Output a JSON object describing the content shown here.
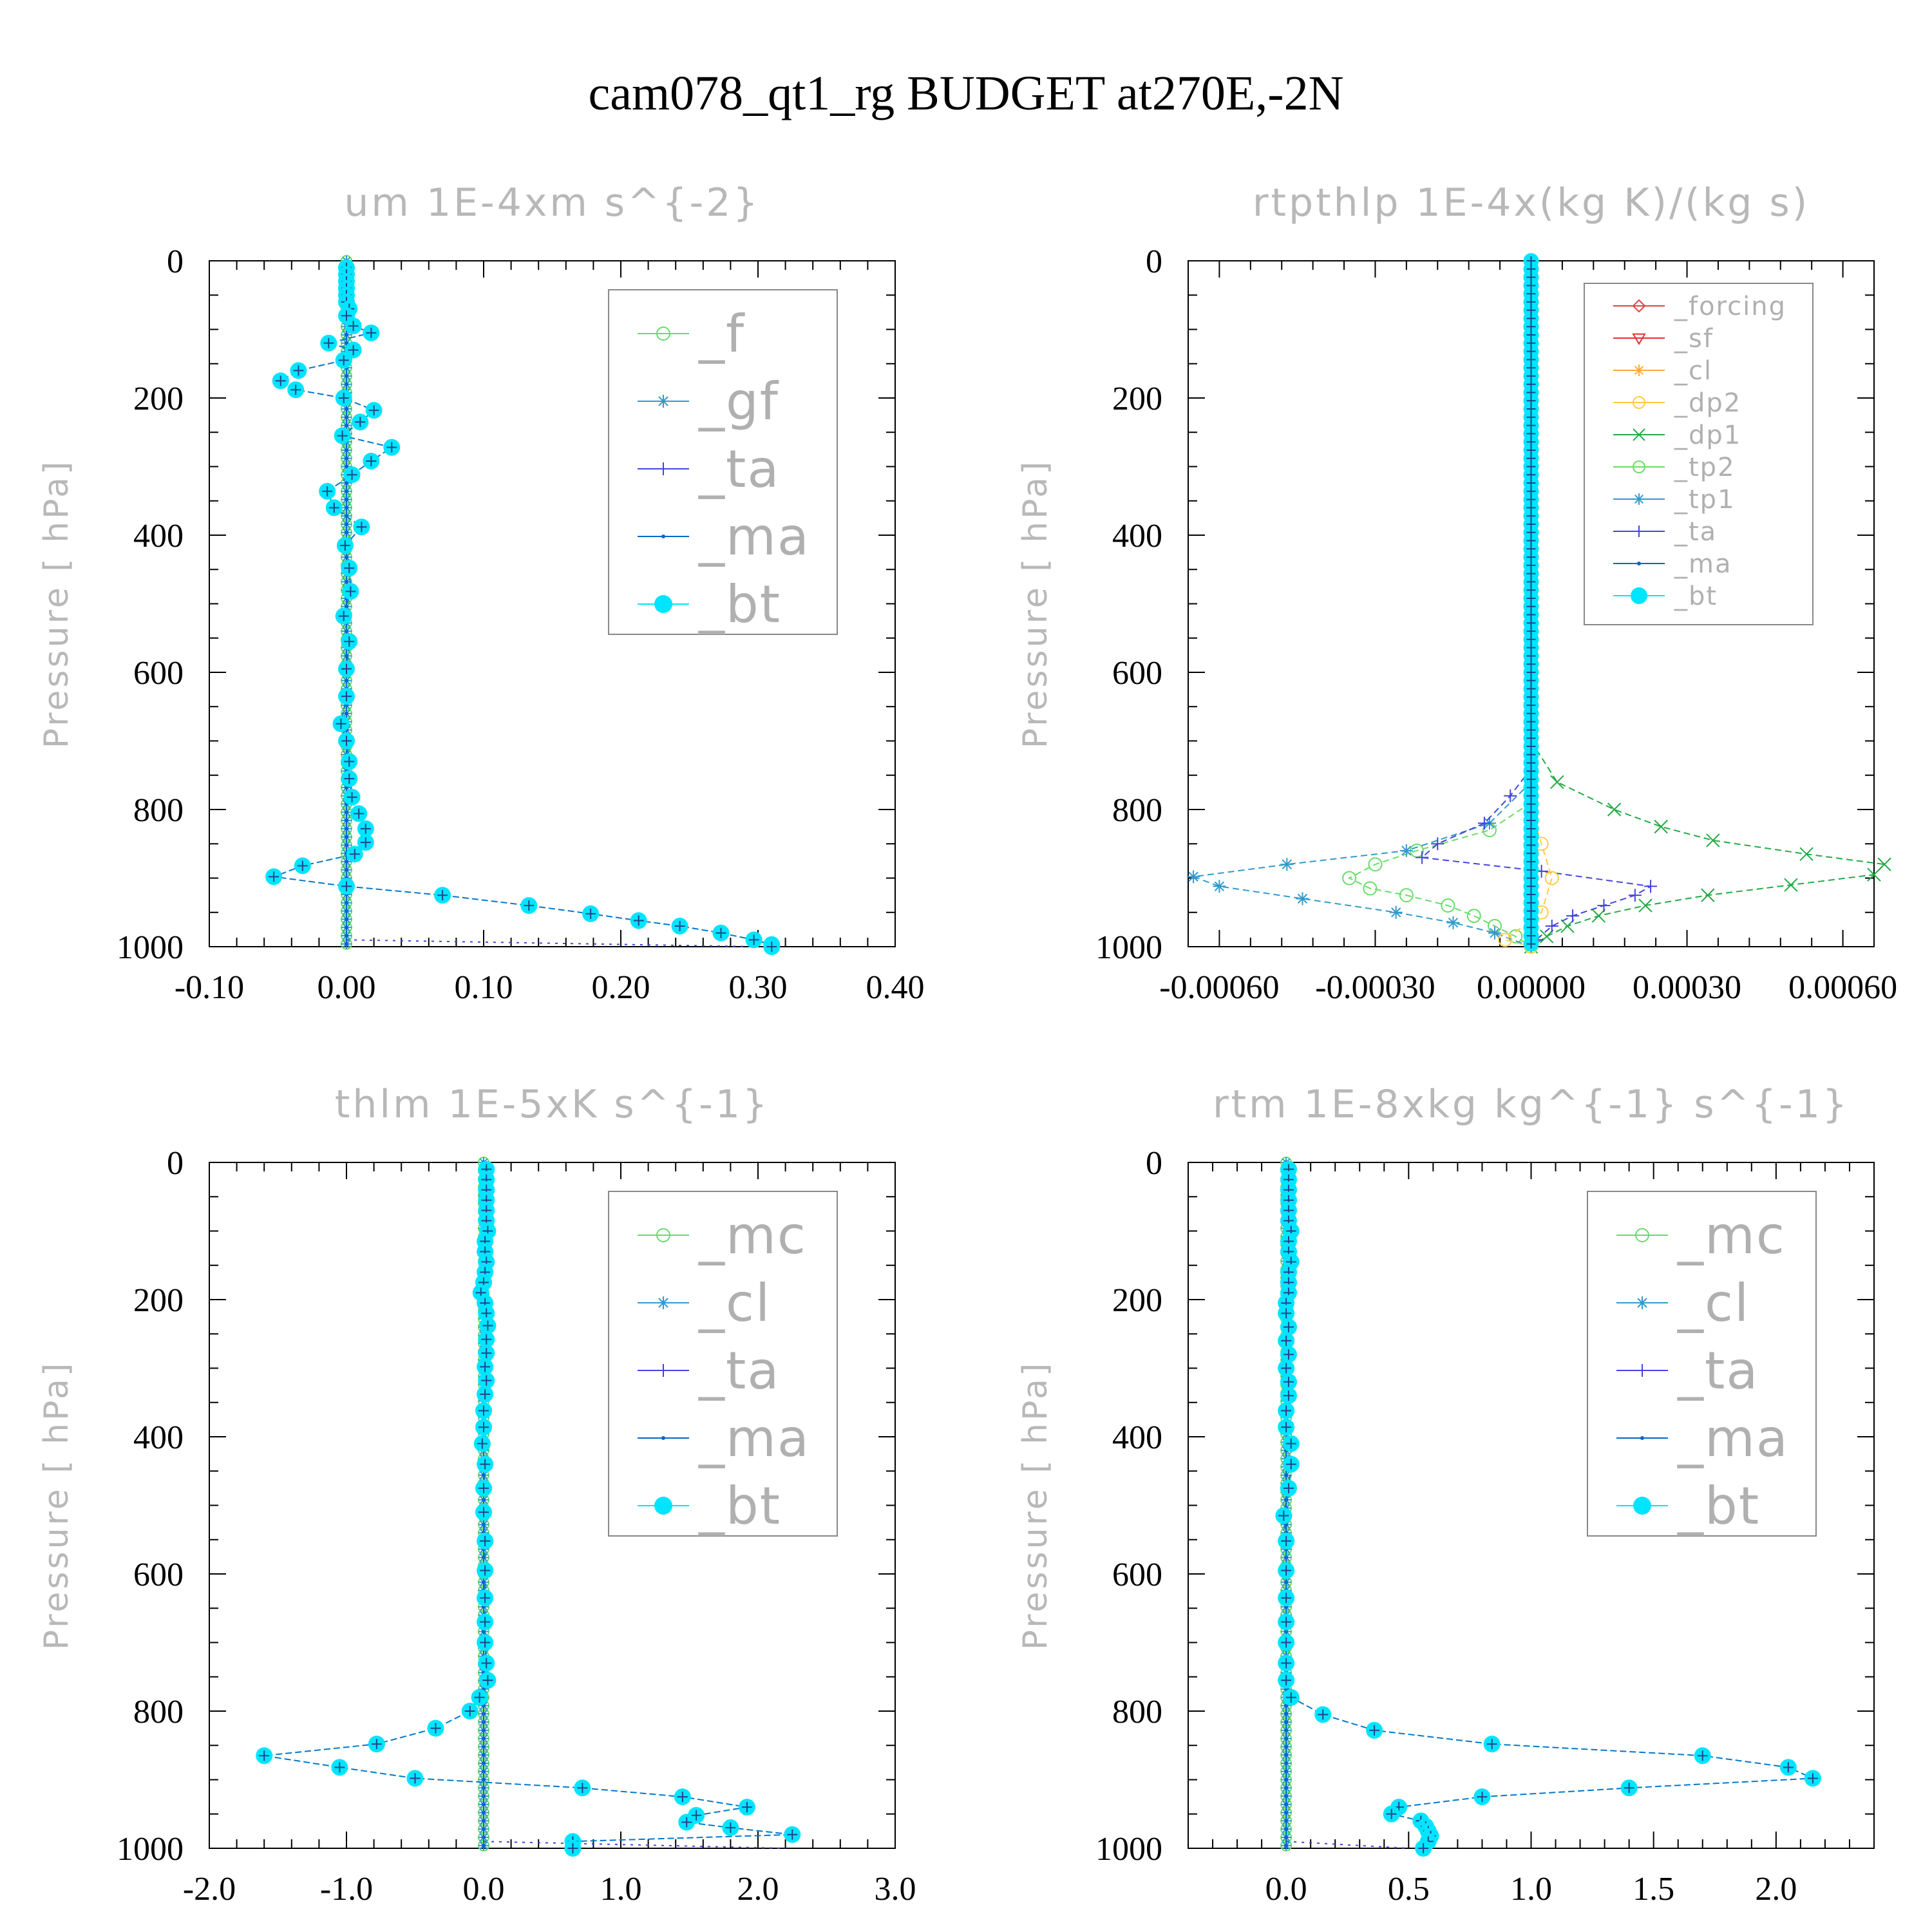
{
  "figure_title": "cam078_qt1_rg  BUDGET at270E,-2N",
  "colors": {
    "_f": "#66dd66",
    "_gf": "#3399cc",
    "_ta": "#4444dd",
    "_ma": "#0066cc",
    "_bt": "#00e5ff",
    "_mc": "#66dd66",
    "_cl": "#3399cc",
    "_forcing": "#dd4444",
    "_sf": "#dd3333",
    "_cl_rt": "#ffaa33",
    "_dp2": "#ffcc44",
    "_dp1": "#22aa44",
    "_tp2": "#66dd66",
    "_tp1": "#3399cc"
  },
  "chart_data": [
    {
      "id": "um",
      "type": "line",
      "title": "um  1E-4xm s^{-2}",
      "ylabel": "Pressure [ hPa]",
      "xlim": [
        -0.1,
        0.4
      ],
      "ylim": [
        1000,
        0
      ],
      "xticks": [
        "-0.10",
        "0.00",
        "0.10",
        "0.20",
        "0.30",
        "0.40"
      ],
      "xtick_values": [
        -0.1,
        0.0,
        0.1,
        0.2,
        0.3,
        0.4
      ],
      "yticks": [
        "0",
        "200",
        "400",
        "600",
        "800",
        "1000"
      ],
      "ytick_values": [
        0,
        200,
        400,
        600,
        800,
        1000
      ],
      "legend": [
        "_f",
        "_gf",
        "_ta",
        "_ma",
        "_bt"
      ],
      "legend_placement": "top-right",
      "pressure": [
        10,
        20,
        30,
        40,
        50,
        60,
        70,
        80,
        95,
        105,
        120,
        130,
        145,
        160,
        175,
        188,
        200,
        218,
        235,
        255,
        272,
        292,
        312,
        336,
        360,
        388,
        415,
        448,
        482,
        518,
        555,
        595,
        635,
        675,
        700,
        730,
        755,
        782,
        806,
        828,
        848,
        865,
        882,
        898,
        912,
        925,
        940,
        952,
        962,
        970,
        980,
        990,
        997,
        1000
      ],
      "bt_values": [
        0.0,
        0.0,
        0.0,
        0.0,
        0.0,
        0.0,
        0.002,
        0.0,
        0.005,
        0.018,
        -0.013,
        0.005,
        -0.002,
        -0.035,
        -0.048,
        -0.037,
        -0.002,
        0.02,
        0.01,
        -0.003,
        0.033,
        0.018,
        0.004,
        -0.014,
        -0.009,
        0.011,
        -0.001,
        0.002,
        0.003,
        -0.002,
        0.002,
        0.0,
        0.0,
        -0.004,
        0.0,
        0.002,
        0.002,
        0.004,
        0.009,
        0.014,
        0.014,
        0.006,
        -0.032,
        -0.053,
        0.0,
        0.07,
        0.133,
        0.178,
        0.213,
        0.243,
        0.273,
        0.297,
        0.31,
        0.31
      ],
      "ta_profile": {
        "pressure": [
          990,
          1000
        ],
        "values": [
          0.0,
          0.3
        ]
      },
      "series_near_zero": [
        "_f",
        "_gf",
        "_ma"
      ]
    },
    {
      "id": "rtpthlp",
      "type": "line",
      "title": "rtpthlp  1E-4x(kg K)/(kg s)",
      "ylabel": "Pressure [ hPa]",
      "xlim": [
        -0.00066,
        0.00066
      ],
      "ylim": [
        1000,
        0
      ],
      "xticks": [
        "-0.00060",
        "-0.00030",
        "0.00000",
        "0.00030",
        "0.00060"
      ],
      "xtick_values": [
        -0.0006,
        -0.0003,
        0.0,
        0.0003,
        0.0006
      ],
      "yticks": [
        "0",
        "200",
        "400",
        "600",
        "800",
        "1000"
      ],
      "ytick_values": [
        0,
        200,
        400,
        600,
        800,
        1000
      ],
      "legend": [
        "_forcing",
        "_sf",
        "_cl",
        "_dp2",
        "_dp1",
        "_tp2",
        "_tp1",
        "_ta",
        "_ma",
        "_bt"
      ],
      "legend_placement": "top-right",
      "series": [
        {
          "name": "_dp1",
          "pressure": [
            700,
            760,
            800,
            825,
            845,
            865,
            880,
            895,
            910,
            925,
            940,
            955,
            970,
            985,
            1000
          ],
          "values": [
            0.0,
            5e-05,
            0.00016,
            0.00025,
            0.00035,
            0.00053,
            0.00068,
            0.00066,
            0.0005,
            0.00034,
            0.00022,
            0.00013,
            7e-05,
            3e-05,
            0.0
          ]
        },
        {
          "name": "_tp2",
          "pressure": [
            790,
            830,
            860,
            880,
            900,
            915,
            925,
            940,
            955,
            970,
            985,
            1000
          ],
          "values": [
            0.0,
            -8e-05,
            -0.00022,
            -0.0003,
            -0.00035,
            -0.00031,
            -0.00024,
            -0.00016,
            -0.00011,
            -7e-05,
            -3e-05,
            0.0
          ]
        },
        {
          "name": "_tp1",
          "pressure": [
            760,
            820,
            860,
            880,
            898,
            912,
            930,
            950,
            965,
            980,
            1000
          ],
          "values": [
            0.0,
            -8e-05,
            -0.00024,
            -0.00047,
            -0.00065,
            -0.0006,
            -0.00044,
            -0.00026,
            -0.00015,
            -7e-05,
            0.0
          ]
        },
        {
          "name": "_ta",
          "pressure": [
            740,
            780,
            820,
            850,
            870,
            890,
            912,
            925,
            940,
            955,
            970,
            990,
            1000
          ],
          "values": [
            0.0,
            -4e-05,
            -9e-05,
            -0.00018,
            -0.00021,
            2e-05,
            0.00023,
            0.0002,
            0.00014,
            8e-05,
            4e-05,
            1e-05,
            0.0
          ]
        },
        {
          "name": "_dp2",
          "pressure": [
            800,
            850,
            900,
            950,
            990,
            1000
          ],
          "values": [
            0.0,
            2e-05,
            4e-05,
            2e-05,
            -5e-05,
            0.0
          ]
        }
      ],
      "series_near_zero": [
        "_forcing",
        "_sf",
        "_cl",
        "_ma",
        "_bt"
      ]
    },
    {
      "id": "thlm",
      "type": "line",
      "title": "thlm  1E-5xK s^{-1}",
      "ylabel": "Pressure [ hPa]",
      "xlim": [
        -2.0,
        3.0
      ],
      "ylim": [
        1000,
        0
      ],
      "xticks": [
        "-2.0",
        "-1.0",
        "0.0",
        "1.0",
        "2.0",
        "3.0"
      ],
      "xtick_values": [
        -2.0,
        -1.0,
        0.0,
        1.0,
        2.0,
        3.0
      ],
      "yticks": [
        "0",
        "200",
        "400",
        "600",
        "800",
        "1000"
      ],
      "ytick_values": [
        0,
        200,
        400,
        600,
        800,
        1000
      ],
      "legend": [
        "_mc",
        "_cl",
        "_ta",
        "_ma",
        "_bt"
      ],
      "legend_placement": "top-right",
      "pressure": [
        10,
        25,
        40,
        55,
        70,
        85,
        100,
        115,
        130,
        145,
        160,
        175,
        190,
        205,
        220,
        238,
        258,
        278,
        298,
        318,
        338,
        362,
        386,
        410,
        440,
        475,
        510,
        552,
        595,
        635,
        670,
        700,
        730,
        755,
        780,
        800,
        825,
        848,
        865,
        882,
        898,
        912,
        925,
        940,
        952,
        962,
        970,
        980,
        990,
        1000
      ],
      "bt_values": [
        0.02,
        0.02,
        0.02,
        0.02,
        0.02,
        0.02,
        0.03,
        0.01,
        0.01,
        0.02,
        0.01,
        0.0,
        -0.02,
        0.01,
        0.02,
        0.03,
        0.02,
        0.02,
        0.01,
        0.02,
        0.01,
        0.0,
        0.0,
        -0.01,
        0.01,
        0.0,
        0.0,
        0.01,
        0.01,
        0.01,
        0.01,
        0.01,
        0.02,
        0.03,
        -0.03,
        -0.1,
        -0.35,
        -0.78,
        -1.6,
        -1.05,
        -0.5,
        0.72,
        1.45,
        1.92,
        1.55,
        1.48,
        1.8,
        2.25,
        0.65,
        0.65
      ],
      "ta_profile": {
        "pressure": [
          990,
          1000
        ],
        "values": [
          0.0,
          2.2
        ]
      },
      "series_near_zero": [
        "_mc",
        "_cl",
        "_ma"
      ]
    },
    {
      "id": "rtm",
      "type": "line",
      "title": "rtm  1E-8xkg kg^{-1} s^{-1}",
      "ylabel": "Pressure [ hPa]",
      "xlim": [
        -0.4,
        2.4
      ],
      "ylim": [
        1000,
        0
      ],
      "xticks": [
        "0.0",
        "0.5",
        "1.0",
        "1.5",
        "2.0"
      ],
      "xtick_values": [
        0.0,
        0.5,
        1.0,
        1.5,
        2.0
      ],
      "yticks": [
        "0",
        "200",
        "400",
        "600",
        "800",
        "1000"
      ],
      "ytick_values": [
        0,
        200,
        400,
        600,
        800,
        1000
      ],
      "legend": [
        "_mc",
        "_cl",
        "_ta",
        "_ma",
        "_bt"
      ],
      "legend_placement": "top-right",
      "pressure": [
        10,
        25,
        40,
        55,
        70,
        85,
        100,
        115,
        130,
        145,
        160,
        175,
        190,
        205,
        220,
        240,
        260,
        280,
        300,
        320,
        340,
        362,
        386,
        410,
        440,
        475,
        515,
        552,
        595,
        635,
        670,
        700,
        730,
        755,
        780,
        805,
        828,
        848,
        865,
        882,
        898,
        912,
        925,
        940,
        950,
        960,
        968,
        975,
        982,
        990,
        1000
      ],
      "bt_values": [
        0.01,
        0.01,
        0.01,
        0.01,
        0.01,
        0.01,
        0.02,
        0.01,
        0.01,
        0.02,
        0.01,
        0.01,
        0.01,
        0.0,
        0.0,
        0.01,
        0.0,
        0.01,
        0.0,
        0.01,
        0.01,
        0.0,
        0.0,
        0.02,
        0.02,
        0.01,
        -0.01,
        0.0,
        0.0,
        0.0,
        0.0,
        0.0,
        0.0,
        0.0,
        0.02,
        0.15,
        0.36,
        0.84,
        1.7,
        2.05,
        2.15,
        1.4,
        0.8,
        0.46,
        0.43,
        0.55,
        0.57,
        0.58,
        0.59,
        0.58,
        0.56
      ],
      "ta_profile": {
        "pressure": [
          990,
          1000
        ],
        "values": [
          0.0,
          0.5
        ]
      },
      "series_near_zero": [
        "_mc",
        "_cl",
        "_ma"
      ]
    }
  ]
}
